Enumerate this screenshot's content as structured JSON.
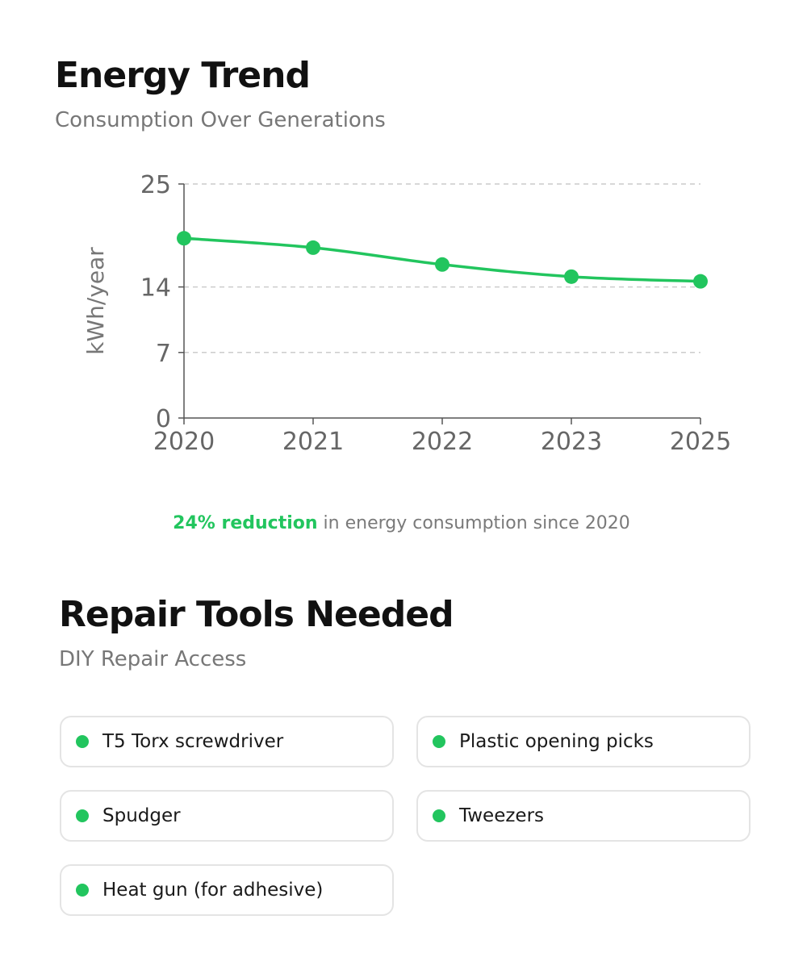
{
  "energy": {
    "title": "Energy Trend",
    "subtitle": "Consumption Over Generations",
    "summary_highlight": "24% reduction",
    "summary_rest": " in energy consumption since 2020"
  },
  "chart_data": {
    "type": "line",
    "categories": [
      "2020",
      "2021",
      "2022",
      "2023",
      "2025"
    ],
    "values": [
      19.2,
      18.2,
      16.4,
      15.1,
      14.6
    ],
    "yticks": [
      0,
      7,
      14,
      25
    ],
    "ylim": [
      0,
      25
    ],
    "ylabel": "kWh/year",
    "xlabel": "",
    "grid": true,
    "line_color": "#22c55e",
    "grid_color": "#cccccc",
    "axis_color": "#555555"
  },
  "tools": {
    "title": "Repair Tools Needed",
    "subtitle": "DIY Repair Access",
    "dot_color": "#22c55e",
    "items": [
      {
        "label": "T5 Torx screwdriver"
      },
      {
        "label": "Plastic opening picks"
      },
      {
        "label": "Spudger"
      },
      {
        "label": "Tweezers"
      },
      {
        "label": "Heat gun (for adhesive)"
      }
    ]
  }
}
